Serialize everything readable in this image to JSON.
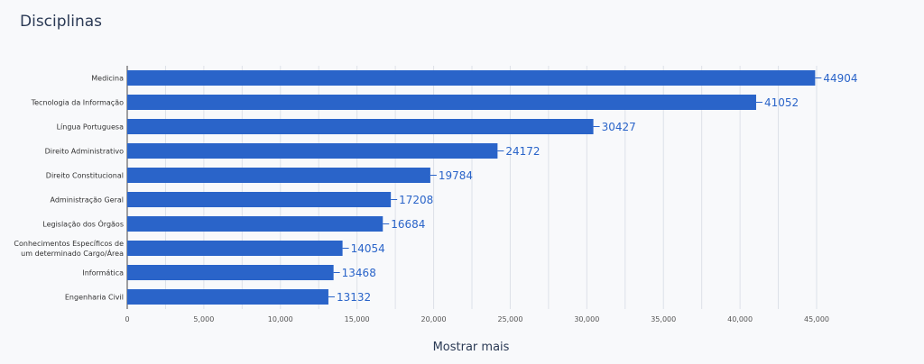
{
  "page": {
    "title": "Disciplinas",
    "more_label": "Mostrar mais"
  },
  "colors": {
    "bar": "#2a64c9",
    "grid": "#dde1e8",
    "axis": "#444444"
  },
  "chart_data": {
    "type": "bar",
    "orientation": "horizontal",
    "title": "Disciplinas",
    "xlabel": "",
    "ylabel": "",
    "xlim": [
      0,
      45000
    ],
    "x_ticks": [
      0,
      5000,
      10000,
      15000,
      20000,
      25000,
      30000,
      35000,
      40000,
      45000
    ],
    "x_tick_labels": [
      "0",
      "5,000",
      "10,000",
      "15,000",
      "20,000",
      "25,000",
      "30,000",
      "35,000",
      "40,000",
      "45,000"
    ],
    "grid": true,
    "categories": [
      [
        "Medicina"
      ],
      [
        "Tecnologia da Informação"
      ],
      [
        "Língua Portuguesa"
      ],
      [
        "Direito Administrativo"
      ],
      [
        "Direito Constitucional"
      ],
      [
        "Administração Geral"
      ],
      [
        "Legislação dos Órgãos"
      ],
      [
        "Conhecimentos Específicos de",
        "um determinado Cargo/Área"
      ],
      [
        "Informática"
      ],
      [
        "Engenharia Civil"
      ]
    ],
    "values": [
      44904,
      41052,
      30427,
      24172,
      19784,
      17208,
      16684,
      14054,
      13468,
      13132
    ]
  }
}
